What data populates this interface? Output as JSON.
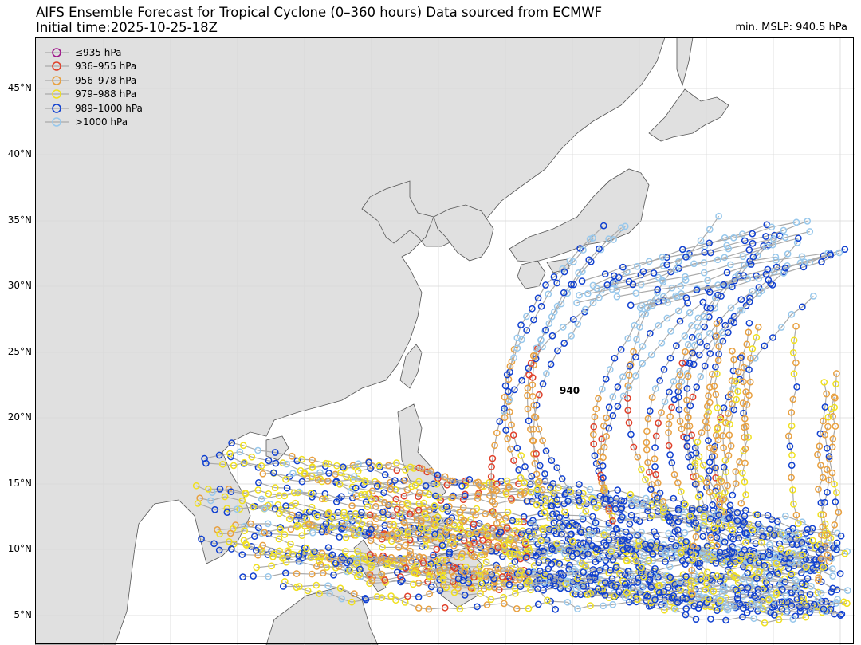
{
  "title_line1": "AIFS Ensemble Forecast for Tropical Cyclone (0–360 hours) Data sourced from ECMWF",
  "title_line2": "Initial time:2025-10-25-18Z",
  "min_mslp_label": "min. MSLP: 940.5 hPa",
  "min_marker_label": "940",
  "lat_labels": [
    "45°N",
    "40°N",
    "35°N",
    "30°N",
    "25°N",
    "20°N",
    "15°N",
    "10°N",
    "5°N"
  ],
  "legend": [
    {
      "label": "≤935 hPa",
      "color": "#a0198c"
    },
    {
      "label": "936–955 hPa",
      "color": "#e0402a"
    },
    {
      "label": "956–978 hPa",
      "color": "#e8a040"
    },
    {
      "label": "979–988 hPa",
      "color": "#f0e020"
    },
    {
      "label": "989–1000 hPa",
      "color": "#1040d0"
    },
    {
      "label": ">1000 hPa",
      "color": "#98c8ec"
    }
  ],
  "colors": {
    "land": "#e0e0e0",
    "ocean": "#ffffff",
    "track_line": "#aaaaaa",
    "grid": "#d8d8d8"
  }
}
